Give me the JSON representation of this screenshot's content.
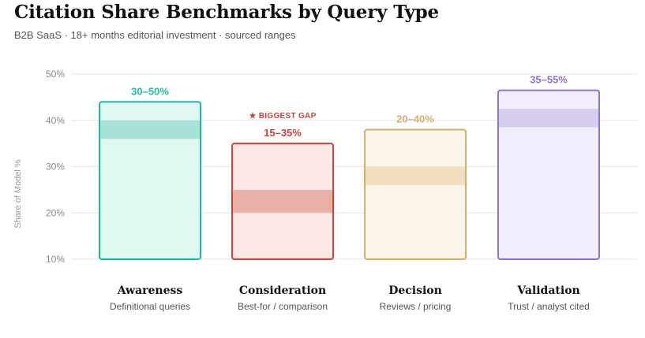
{
  "title": "Citation Share Benchmarks by Query Type",
  "subtitle": "B2B SaaS · 18+ months editorial investment · sourced ranges",
  "chart_data": {
    "type": "bar",
    "ylabel": "Share of Model %",
    "ylim": [
      10,
      50
    ],
    "yticks": [
      "10%",
      "20%",
      "30%",
      "40%",
      "50%"
    ],
    "grid": true,
    "categories": [
      {
        "name": "Awareness",
        "subtitle": "Definitional queries",
        "range_label": "30–50%",
        "bar_top": 44,
        "band": [
          36,
          40
        ],
        "color": "#2bb5a0",
        "fill": "#e0f7f2",
        "band_fill": "#a6e3d6"
      },
      {
        "name": "Consideration",
        "subtitle": "Best-for / comparison",
        "range_label": "15–35%",
        "annotation": "★ BIGGEST GAP",
        "bar_top": 35,
        "band": [
          20,
          25
        ],
        "color": "#c0473a",
        "fill": "#fde9e7",
        "band_fill": "#e8b1a8"
      },
      {
        "name": "Decision",
        "subtitle": "Reviews / pricing",
        "range_label": "20–40%",
        "bar_top": 38,
        "band": [
          26,
          30
        ],
        "color": "#d4b070",
        "fill": "#fcf6e8",
        "band_fill": "#efdfbe"
      },
      {
        "name": "Validation",
        "subtitle": "Trust / analyst cited",
        "range_label": "35–55%",
        "bar_top": 46.5,
        "band": [
          38.5,
          42.5
        ],
        "color": "#8c73cc",
        "fill": "#f1eefb",
        "band_fill": "#d6cdef"
      }
    ]
  }
}
